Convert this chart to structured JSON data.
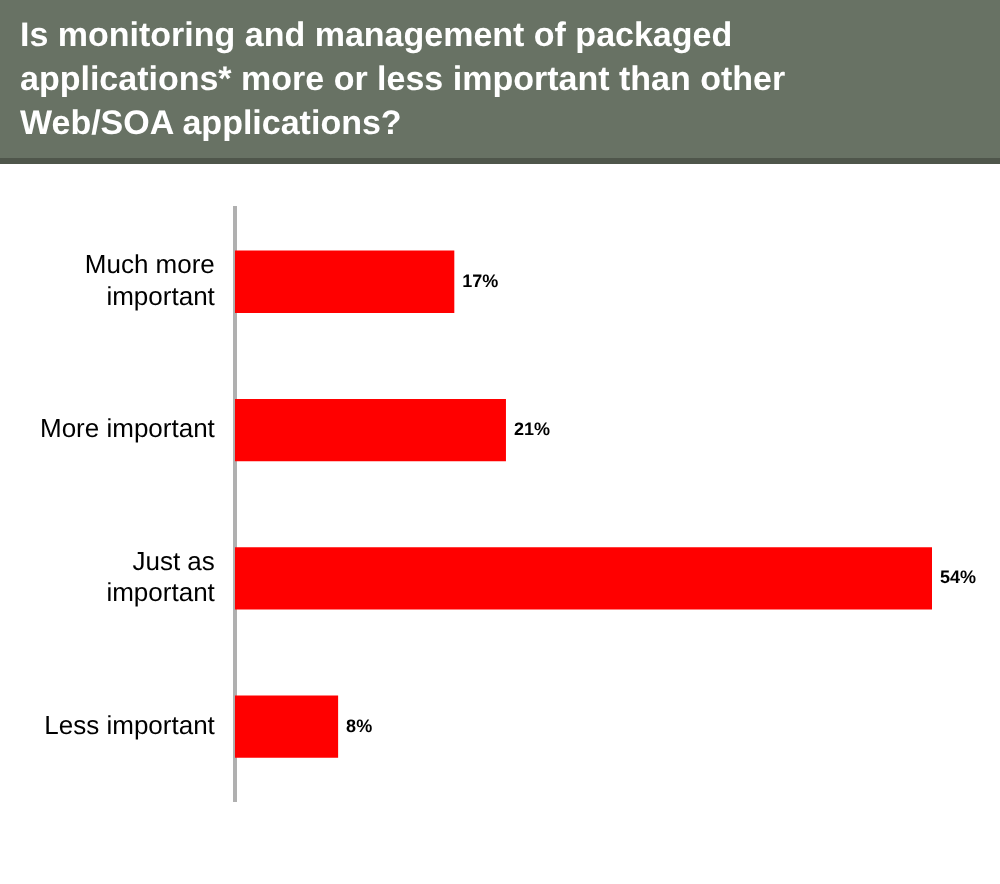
{
  "chart_data": {
    "type": "bar",
    "orientation": "horizontal",
    "title": "Is monitoring and management of packaged applications* more or less important than other Web/SOA applications?",
    "categories": [
      "Much more important",
      "More important",
      "Just as important",
      "Less important"
    ],
    "values": [
      17,
      21,
      54,
      8
    ],
    "value_labels": [
      "17%",
      "21%",
      "54%",
      "8%"
    ],
    "color": "#ff0000"
  }
}
